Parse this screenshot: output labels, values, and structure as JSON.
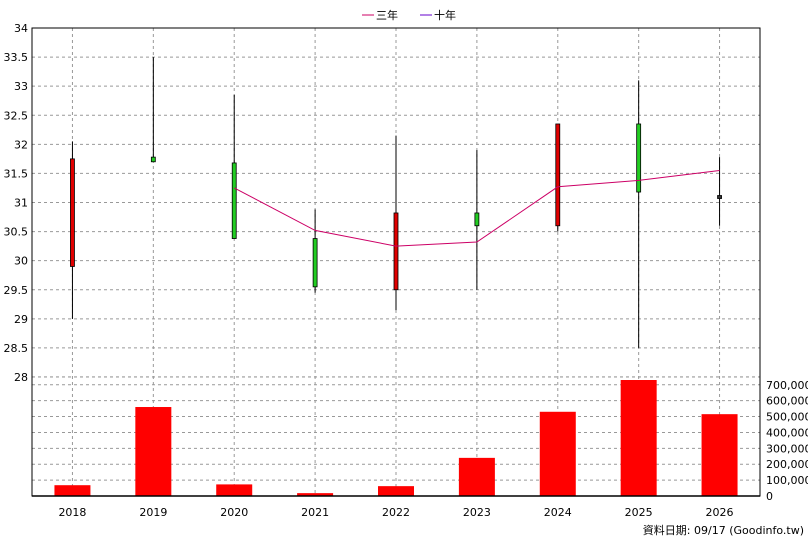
{
  "legend": [
    {
      "name": "三年",
      "color": "#cc0066"
    },
    {
      "name": "十年",
      "color": "#6600cc"
    }
  ],
  "footer": {
    "label": "資料日期: 09/17  (Goodinfo.tw)"
  },
  "colors": {
    "up": "#e00000",
    "down": "#22cc22",
    "volume": "#ff0000",
    "grid": "#999999"
  },
  "chart_data": [
    {
      "type": "candlestick",
      "categories": [
        "2018",
        "2019",
        "2020",
        "2021",
        "2022",
        "2023",
        "2024",
        "2025",
        "2026"
      ],
      "ylim": [
        28,
        34
      ],
      "yticks": [
        "28",
        "28.5",
        "29",
        "29.5",
        "30",
        "30.5",
        "31",
        "31.5",
        "32",
        "32.5",
        "33",
        "33.5",
        "34"
      ],
      "grid": true,
      "candles": [
        {
          "x": "2018",
          "open": 31.75,
          "close": 29.9,
          "high": 32.05,
          "low": 29.0,
          "color": "red"
        },
        {
          "x": "2019",
          "open": 31.7,
          "close": 31.78,
          "high": 33.5,
          "low": 31.7,
          "color": "green"
        },
        {
          "x": "2020",
          "open": 31.68,
          "close": 30.38,
          "high": 32.85,
          "low": 30.38,
          "color": "green"
        },
        {
          "x": "2021",
          "open": 30.38,
          "close": 29.55,
          "high": 30.88,
          "low": 29.45,
          "color": "green"
        },
        {
          "x": "2022",
          "open": 30.82,
          "close": 29.5,
          "high": 32.15,
          "low": 29.15,
          "color": "red"
        },
        {
          "x": "2023",
          "open": 30.82,
          "close": 30.6,
          "high": 31.9,
          "low": 29.5,
          "color": "green"
        },
        {
          "x": "2024",
          "open": 32.35,
          "close": 30.6,
          "high": 32.35,
          "low": 30.5,
          "color": "red"
        },
        {
          "x": "2025",
          "open": 32.35,
          "close": 31.18,
          "high": 33.1,
          "low": 28.5,
          "color": "green"
        },
        {
          "x": "2026",
          "open": 31.12,
          "close": 31.1,
          "high": 31.78,
          "low": 30.6,
          "color": "dark"
        }
      ],
      "series": [
        {
          "name": "三年",
          "color": "#cc0066",
          "x": [
            "2020",
            "2021",
            "2022",
            "2023",
            "2024",
            "2025",
            "2026"
          ],
          "values": [
            31.25,
            30.52,
            30.25,
            30.32,
            31.27,
            31.38,
            31.55
          ]
        }
      ]
    },
    {
      "type": "bar",
      "categories": [
        "2018",
        "2019",
        "2020",
        "2021",
        "2022",
        "2023",
        "2024",
        "2025",
        "2026"
      ],
      "values": [
        68000,
        560000,
        73000,
        18000,
        62000,
        240000,
        530000,
        730000,
        515000
      ],
      "ylim": [
        0,
        700000
      ],
      "yticks": [
        "0",
        "100,000",
        "200,000",
        "300,000",
        "400,000",
        "500,000",
        "600,000",
        "700,000"
      ],
      "color": "#ff0000"
    }
  ]
}
